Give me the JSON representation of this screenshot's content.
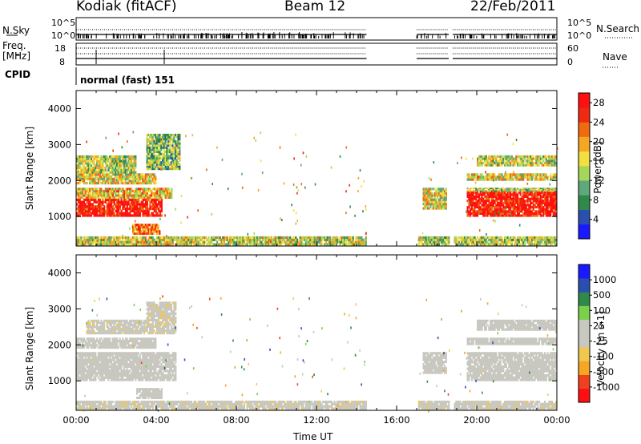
{
  "header": {
    "radar": "Kodiak (fitACF)",
    "beam": "Beam 12",
    "date": "22/Feb/2011"
  },
  "status_panels": {
    "nsky_label": "N.Sky",
    "nsearch_label": "N.Search",
    "nsky_ticks": [
      "10^5",
      "10^0"
    ],
    "nsearch_ticks": [
      "10^5",
      "10^0"
    ],
    "freq_label_1": "Freq.",
    "freq_label_2": "[MHz]",
    "freq_ticks": [
      "18",
      "8"
    ],
    "nave_label": "Nave",
    "nave_ticks": [
      "60",
      "0"
    ],
    "cpid_label": "CPID",
    "cpid_value": "normal (fast) 151"
  },
  "colors": {
    "power_scale": [
      "#1a1aff",
      "#2a4fb0",
      "#2f8a4a",
      "#5fa87a",
      "#a6d65a",
      "#f0e040",
      "#f5a623",
      "#f06a10",
      "#f02a10",
      "#ff1010"
    ],
    "velocity_scale": [
      "#ff1010",
      "#f04020",
      "#f5a623",
      "#f0c850",
      "#c8c8c0",
      "#c8c8c0",
      "#7ad04a",
      "#2f8a4a",
      "#2a4fb0",
      "#1a1aff"
    ]
  },
  "chart_data": [
    {
      "type": "heatmap",
      "title": "",
      "xlabel": "Time UT",
      "ylabel": "Slant Range [km]",
      "xticks": [
        "00:00",
        "04:00",
        "08:00",
        "12:00",
        "16:00",
        "20:00",
        "00:00"
      ],
      "yticks": [
        "1000",
        "2000",
        "3000",
        "4000"
      ],
      "xlim_hours": [
        0,
        24
      ],
      "ylim_km": [
        180,
        4500
      ],
      "colorbar_label": "Power [dB]",
      "colorbar_ticks": [
        "4",
        "8",
        "12",
        "16",
        "20",
        "24",
        "28"
      ],
      "zlim": [
        0,
        30
      ],
      "regions": [
        {
          "t": [
            0.0,
            4.3
          ],
          "r": [
            1000,
            1500
          ],
          "value": 28
        },
        {
          "t": [
            0.0,
            4.8
          ],
          "r": [
            1500,
            1800
          ],
          "value": 18
        },
        {
          "t": [
            0.0,
            4.0
          ],
          "r": [
            1900,
            2200
          ],
          "value": 17
        },
        {
          "t": [
            0.0,
            3.0
          ],
          "r": [
            2200,
            2700
          ],
          "value": 14
        },
        {
          "t": [
            2.8,
            4.2
          ],
          "r": [
            500,
            800
          ],
          "value": 22
        },
        {
          "t": [
            3.5,
            5.2
          ],
          "r": [
            2300,
            3300
          ],
          "value": 12
        },
        {
          "t": [
            17.3,
            18.5
          ],
          "r": [
            1200,
            1800
          ],
          "value": 16
        },
        {
          "t": [
            19.5,
            24.0
          ],
          "r": [
            1000,
            1700
          ],
          "value": 28
        },
        {
          "t": [
            19.5,
            24.0
          ],
          "r": [
            1700,
            1800
          ],
          "value": 14
        },
        {
          "t": [
            19.5,
            24.0
          ],
          "r": [
            2000,
            2200
          ],
          "value": 17
        },
        {
          "t": [
            20.0,
            24.0
          ],
          "r": [
            2400,
            2700
          ],
          "value": 15
        },
        {
          "t": [
            0.0,
            14.5
          ],
          "r": [
            200,
            450
          ],
          "value": 15
        },
        {
          "t": [
            17.0,
            24.0
          ],
          "r": [
            200,
            450
          ],
          "value": 14
        }
      ]
    },
    {
      "type": "heatmap",
      "title": "",
      "xlabel": "Time UT",
      "ylabel": "Slant Range [km]",
      "xticks": [
        "00:00",
        "04:00",
        "08:00",
        "12:00",
        "16:00",
        "20:00",
        "00:00"
      ],
      "yticks": [
        "1000",
        "2000",
        "3000",
        "4000"
      ],
      "xlim_hours": [
        0,
        24
      ],
      "ylim_km": [
        180,
        4500
      ],
      "colorbar_label": "Velocity [m s-1]",
      "colorbar_ticks": [
        "1000",
        "500",
        "100",
        "25",
        "-25",
        "-100",
        "-500",
        "-1000"
      ],
      "zlim": [
        -1000,
        1000
      ],
      "regions": [
        {
          "t": [
            0.0,
            5.0
          ],
          "r": [
            1000,
            1800
          ],
          "value": 0
        },
        {
          "t": [
            0.0,
            4.0
          ],
          "r": [
            1900,
            2200
          ],
          "value": 0
        },
        {
          "t": [
            0.5,
            3.5
          ],
          "r": [
            2300,
            2700
          ],
          "value": -60
        },
        {
          "t": [
            3.0,
            4.3
          ],
          "r": [
            500,
            800
          ],
          "value": 0
        },
        {
          "t": [
            3.5,
            5.0
          ],
          "r": [
            2300,
            3200
          ],
          "value": -80
        },
        {
          "t": [
            17.3,
            18.5
          ],
          "r": [
            1200,
            1800
          ],
          "value": 0
        },
        {
          "t": [
            19.5,
            24.0
          ],
          "r": [
            1000,
            1800
          ],
          "value": 0
        },
        {
          "t": [
            19.5,
            24.0
          ],
          "r": [
            2000,
            2200
          ],
          "value": 0
        },
        {
          "t": [
            20.0,
            24.0
          ],
          "r": [
            2400,
            2700
          ],
          "value": 0
        },
        {
          "t": [
            0.0,
            14.5
          ],
          "r": [
            200,
            450
          ],
          "value": -60
        },
        {
          "t": [
            17.0,
            24.0
          ],
          "r": [
            200,
            450
          ],
          "value": -60
        }
      ]
    }
  ]
}
